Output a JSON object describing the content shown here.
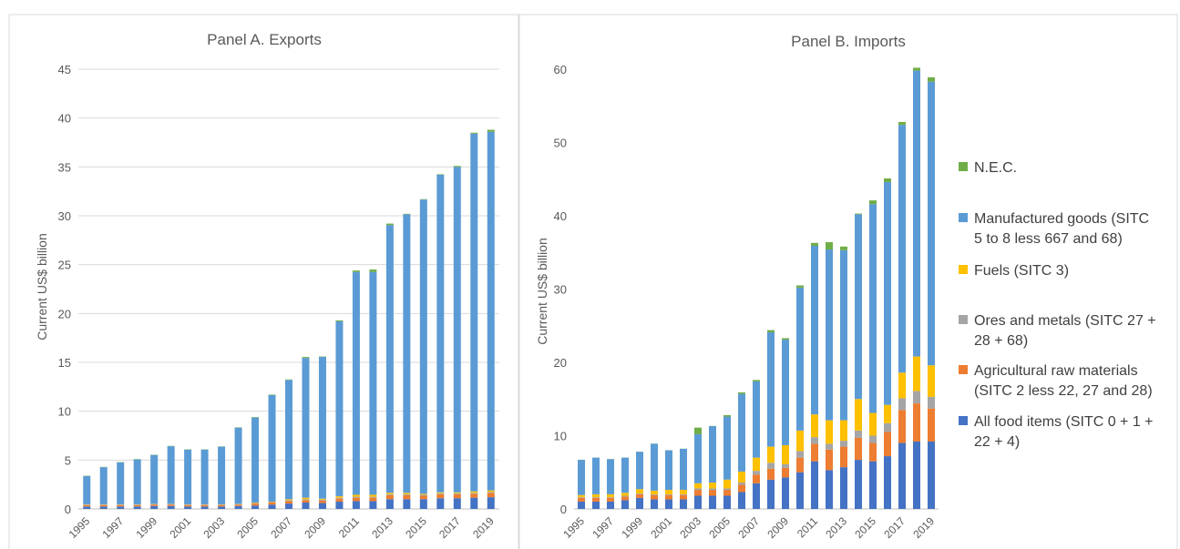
{
  "chart_data": [
    {
      "type": "bar",
      "stacked": true,
      "title": "Panel A. Exports",
      "ylabel": "Current US$ billion",
      "ylim": [
        0,
        45
      ],
      "yticks": [
        0,
        5,
        10,
        15,
        20,
        25,
        30,
        35,
        40,
        45
      ],
      "x": [
        1995,
        1996,
        1997,
        1998,
        1999,
        2000,
        2001,
        2002,
        2003,
        2004,
        2005,
        2006,
        2007,
        2008,
        2009,
        2010,
        2011,
        2012,
        2013,
        2014,
        2015,
        2016,
        2017,
        2018,
        2019
      ],
      "xticks": [
        "1995",
        "1997",
        "1999",
        "2001",
        "2003",
        "2005",
        "2007",
        "2009",
        "2011",
        "2013",
        "2015",
        "2017",
        "2019"
      ],
      "grid": true,
      "series": [
        {
          "name": "All food items (SITC 0 + 1 + 22 + 4)",
          "values": [
            0.25,
            0.25,
            0.25,
            0.25,
            0.3,
            0.3,
            0.25,
            0.25,
            0.25,
            0.3,
            0.35,
            0.45,
            0.55,
            0.65,
            0.6,
            0.75,
            0.8,
            0.8,
            1.0,
            1.0,
            1.0,
            1.1,
            1.1,
            1.15,
            1.2
          ]
        },
        {
          "name": "Agricultural raw materials (SITC 2 less 22, 27 and 28)",
          "values": [
            0.15,
            0.15,
            0.15,
            0.15,
            0.15,
            0.15,
            0.15,
            0.15,
            0.15,
            0.15,
            0.2,
            0.2,
            0.25,
            0.25,
            0.25,
            0.3,
            0.35,
            0.35,
            0.4,
            0.4,
            0.35,
            0.4,
            0.4,
            0.4,
            0.45
          ]
        },
        {
          "name": "Ores and metals (SITC 27 + 28 + 68)",
          "values": [
            0.05,
            0.05,
            0.05,
            0.05,
            0.05,
            0.05,
            0.05,
            0.05,
            0.05,
            0.05,
            0.05,
            0.05,
            0.1,
            0.1,
            0.1,
            0.1,
            0.1,
            0.1,
            0.1,
            0.1,
            0.1,
            0.1,
            0.1,
            0.1,
            0.1
          ]
        },
        {
          "name": "Fuels (SITC 3)",
          "values": [
            0.02,
            0.02,
            0.02,
            0.02,
            0.02,
            0.02,
            0.02,
            0.02,
            0.02,
            0.02,
            0.05,
            0.05,
            0.1,
            0.15,
            0.1,
            0.15,
            0.2,
            0.2,
            0.15,
            0.15,
            0.1,
            0.1,
            0.1,
            0.15,
            0.15
          ]
        },
        {
          "name": "Manufactured goods (SITC 5 to 8 less 667 and 68)",
          "values": [
            2.9,
            3.8,
            4.3,
            4.6,
            5.0,
            5.9,
            5.6,
            5.6,
            5.9,
            7.8,
            8.7,
            10.9,
            12.2,
            14.3,
            14.5,
            17.9,
            22.8,
            22.8,
            27.4,
            28.5,
            30.1,
            32.5,
            33.3,
            36.6,
            36.7
          ]
        },
        {
          "name": "N.E.C.",
          "values": [
            0.03,
            0.03,
            0.03,
            0.03,
            0.03,
            0.03,
            0.03,
            0.03,
            0.03,
            0.03,
            0.05,
            0.05,
            0.05,
            0.1,
            0.05,
            0.1,
            0.15,
            0.25,
            0.15,
            0.05,
            0.05,
            0.05,
            0.1,
            0.1,
            0.2
          ]
        }
      ]
    },
    {
      "type": "bar",
      "stacked": true,
      "title": "Panel B. Imports",
      "ylabel": "Current US$ billion",
      "ylim": [
        0,
        60
      ],
      "yticks": [
        0,
        10,
        20,
        30,
        40,
        50,
        60
      ],
      "x": [
        1995,
        1996,
        1997,
        1998,
        1999,
        2000,
        2001,
        2002,
        2003,
        2004,
        2005,
        2006,
        2007,
        2008,
        2009,
        2010,
        2011,
        2012,
        2013,
        2014,
        2015,
        2016,
        2017,
        2018,
        2019
      ],
      "xticks": [
        "1995",
        "1997",
        "1999",
        "2001",
        "2003",
        "2005",
        "2007",
        "2009",
        "2011",
        "2013",
        "2015",
        "2017",
        "2019"
      ],
      "grid": false,
      "series": [
        {
          "name": "All food items (SITC 0 + 1 + 22 + 4)",
          "values": [
            1.0,
            1.0,
            1.0,
            1.2,
            1.5,
            1.3,
            1.3,
            1.3,
            1.8,
            1.8,
            1.8,
            2.3,
            3.5,
            4.0,
            4.3,
            5.0,
            6.5,
            5.3,
            5.7,
            6.7,
            6.5,
            7.2,
            9.0,
            9.2,
            9.2
          ]
        },
        {
          "name": "Agricultural raw materials (SITC 2 less 22, 27 and 28)",
          "values": [
            0.5,
            0.5,
            0.5,
            0.5,
            0.5,
            0.6,
            0.6,
            0.6,
            0.8,
            0.8,
            0.8,
            1.0,
            1.2,
            1.5,
            1.3,
            2.0,
            2.4,
            2.8,
            2.8,
            3.0,
            2.5,
            3.3,
            4.5,
            5.2,
            4.5
          ]
        },
        {
          "name": "Ores and metals (SITC 27 + 28 + 68)",
          "values": [
            0.1,
            0.1,
            0.1,
            0.1,
            0.1,
            0.1,
            0.1,
            0.1,
            0.2,
            0.2,
            0.2,
            0.3,
            0.5,
            0.8,
            0.5,
            0.9,
            0.9,
            0.8,
            0.8,
            1.0,
            1.0,
            1.2,
            1.6,
            1.7,
            1.6
          ]
        },
        {
          "name": "Fuels (SITC 3)",
          "values": [
            0.3,
            0.4,
            0.4,
            0.4,
            0.6,
            0.5,
            0.6,
            0.6,
            0.7,
            0.8,
            1.2,
            1.5,
            1.8,
            2.2,
            2.6,
            2.8,
            3.1,
            3.2,
            2.8,
            4.3,
            3.1,
            2.5,
            3.5,
            4.7,
            4.3
          ]
        },
        {
          "name": "Manufactured goods (SITC 5 to 8 less 667 and 68)",
          "values": [
            4.8,
            5.0,
            4.8,
            4.8,
            5.1,
            6.4,
            5.4,
            5.6,
            6.7,
            7.7,
            8.6,
            10.6,
            10.4,
            15.6,
            14.4,
            19.5,
            23.0,
            23.3,
            23.2,
            25.2,
            28.5,
            30.4,
            33.8,
            39.0,
            38.7
          ]
        },
        {
          "name": "N.E.C.",
          "values": [
            0.02,
            0.02,
            0.02,
            0.02,
            0.02,
            0.02,
            0.02,
            0.02,
            0.9,
            0.02,
            0.2,
            0.2,
            0.2,
            0.3,
            0.2,
            0.3,
            0.4,
            1.0,
            0.5,
            0.1,
            0.5,
            0.5,
            0.4,
            0.4,
            0.6
          ]
        }
      ]
    }
  ],
  "legend": {
    "placement": "right",
    "items": [
      {
        "key": "nec",
        "label_lines": [
          "N.E.C."
        ],
        "color": "#70ad47"
      },
      {
        "key": "manufactured",
        "label_lines": [
          "Manufactured goods (SITC",
          "5 to 8 less 667 and 68)"
        ],
        "color": "#5b9bd5"
      },
      {
        "key": "fuels",
        "label_lines": [
          "Fuels (SITC 3)"
        ],
        "color": "#ffc000"
      },
      {
        "key": "ores",
        "label_lines": [
          "Ores and metals (SITC 27 +",
          "28 + 68)"
        ],
        "color": "#a5a5a5"
      },
      {
        "key": "agri",
        "label_lines": [
          "Agricultural raw materials",
          "(SITC 2 less 22, 27 and 28)"
        ],
        "color": "#ed7d31"
      },
      {
        "key": "food",
        "label_lines": [
          "All food items (SITC 0 + 1 +",
          "22 + 4)"
        ],
        "color": "#4472c4"
      }
    ]
  },
  "series_colors": [
    "#4472c4",
    "#ed7d31",
    "#a5a5a5",
    "#ffc000",
    "#5b9bd5",
    "#70ad47"
  ]
}
